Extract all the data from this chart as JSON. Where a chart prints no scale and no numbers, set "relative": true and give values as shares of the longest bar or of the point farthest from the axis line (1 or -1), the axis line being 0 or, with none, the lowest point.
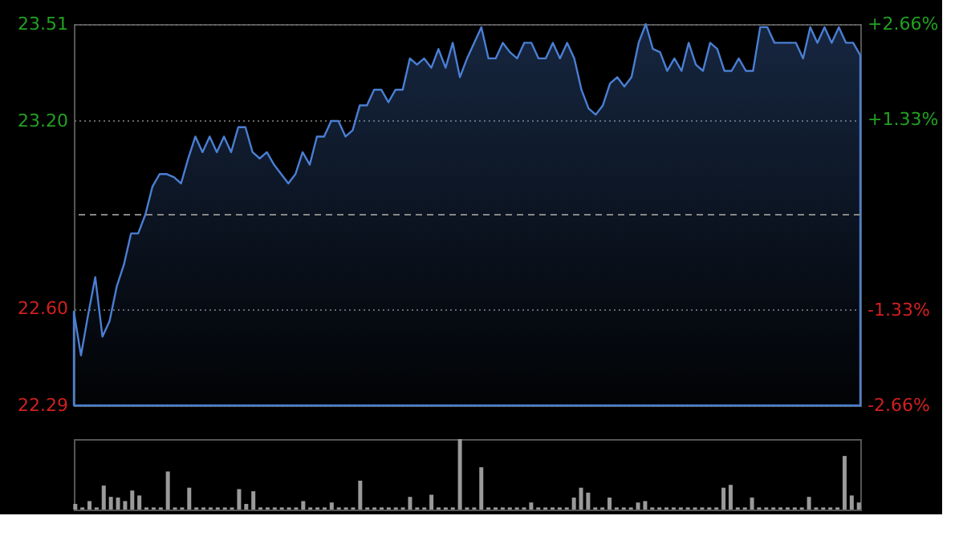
{
  "chart_data": [
    {
      "type": "area",
      "categories": [
        null,
        null,
        null,
        null,
        null,
        null,
        null,
        null,
        null,
        null,
        null,
        null,
        null,
        null,
        null,
        null,
        null,
        null,
        null,
        null,
        null,
        null,
        null,
        null,
        null,
        null,
        null,
        null,
        null,
        null,
        null,
        null,
        null,
        null,
        null,
        null,
        null,
        null,
        null,
        null,
        null,
        null,
        null,
        null,
        null,
        null,
        null,
        null,
        null,
        null,
        null,
        null,
        null,
        null,
        null,
        null,
        null,
        null,
        null,
        null,
        null,
        null,
        null,
        null,
        null,
        null,
        null,
        null,
        null,
        null,
        null,
        null,
        null,
        null,
        null,
        null,
        null,
        null,
        null,
        null,
        null,
        null,
        null,
        null,
        null,
        null,
        null,
        null,
        null,
        null,
        null,
        null,
        null,
        null,
        null,
        null,
        null,
        null,
        null,
        null,
        null,
        null,
        null,
        null,
        null,
        null,
        null,
        null,
        null,
        null,
        null
      ],
      "series": [
        {
          "color": "#4a7fd4",
          "values": [
            22.59,
            22.45,
            22.58,
            22.7,
            22.51,
            22.56,
            22.67,
            22.74,
            22.84,
            22.84,
            22.9,
            22.99,
            23.03,
            23.03,
            23.02,
            23.0,
            23.08,
            23.15,
            23.1,
            23.15,
            23.1,
            23.15,
            23.1,
            23.18,
            23.18,
            23.1,
            23.08,
            23.1,
            23.06,
            23.03,
            23.0,
            23.03,
            23.1,
            23.06,
            23.15,
            23.15,
            23.2,
            23.2,
            23.15,
            23.17,
            23.25,
            23.25,
            23.3,
            23.3,
            23.26,
            23.3,
            23.3,
            23.4,
            23.38,
            23.4,
            23.37,
            23.43,
            23.37,
            23.45,
            23.34,
            23.4,
            23.45,
            23.5,
            23.4,
            23.4,
            23.45,
            23.42,
            23.4,
            23.45,
            23.45,
            23.4,
            23.4,
            23.45,
            23.4,
            23.45,
            23.4,
            23.3,
            23.24,
            23.22,
            23.25,
            23.32,
            23.34,
            23.31,
            23.34,
            23.45,
            23.51,
            23.43,
            23.42,
            23.36,
            23.4,
            23.36,
            23.45,
            23.38,
            23.36,
            23.45,
            23.43,
            23.36,
            23.36,
            23.4,
            23.36,
            23.36,
            23.5,
            23.5,
            23.45,
            23.45,
            23.45,
            23.45,
            23.4,
            23.5,
            23.45,
            23.5,
            23.45,
            23.5,
            23.45,
            23.45,
            23.41
          ]
        }
      ],
      "ylim": [
        22.29,
        23.51
      ],
      "yticks": [
        22.29,
        {
          "value": 22.6,
          "label": "22.60"
        },
        {
          "value": 23.2,
          "label": "23.20"
        },
        23.51
      ],
      "y2lim": [
        -2.66,
        2.66
      ],
      "y2ticks": [
        {
          "value": -2.66,
          "label": "-2.66%"
        },
        {
          "value": -1.33,
          "label": "-1.33%"
        },
        {
          "value": 1.33,
          "label": "+1.33%"
        },
        {
          "value": 2.66,
          "label": "+2.66%"
        }
      ],
      "ref_lines": [
        {
          "axis": "y2",
          "value": 0,
          "color": "#888888",
          "line_style": "dashed"
        }
      ],
      "grid": "y",
      "tick_labels": "y"
    },
    {
      "type": "bar",
      "relative": true,
      "color": "#9a9a9a",
      "tick_labels": false,
      "categories": [
        null,
        null,
        null,
        null,
        null,
        null,
        null,
        null,
        null,
        null,
        null,
        null,
        null,
        null,
        null,
        null,
        null,
        null,
        null,
        null,
        null,
        null,
        null,
        null,
        null,
        null,
        null,
        null,
        null,
        null,
        null,
        null,
        null,
        null,
        null,
        null,
        null,
        null,
        null,
        null,
        null,
        null,
        null,
        null,
        null,
        null,
        null,
        null,
        null,
        null,
        null,
        null,
        null,
        null,
        null,
        null,
        null,
        null,
        null,
        null,
        null,
        null,
        null,
        null,
        null,
        null,
        null,
        null,
        null,
        null,
        null,
        null,
        null,
        null,
        null,
        null,
        null,
        null,
        null,
        null,
        null,
        null,
        null,
        null,
        null,
        null,
        null,
        null,
        null,
        null,
        null,
        null,
        null,
        null,
        null,
        null,
        null,
        null,
        null,
        null,
        null,
        null,
        null,
        null,
        null,
        null,
        null,
        null,
        null,
        null,
        null
      ],
      "values": [
        0.08,
        0.03,
        0.12,
        0.03,
        0.34,
        0.18,
        0.17,
        0.12,
        0.27,
        0.2,
        0.03,
        0.03,
        0.03,
        0.54,
        0.03,
        0.03,
        0.31,
        0.03,
        0.03,
        0.03,
        0.03,
        0.03,
        0.03,
        0.29,
        0.08,
        0.26,
        0.03,
        0.03,
        0.03,
        0.03,
        0.03,
        0.03,
        0.12,
        0.03,
        0.03,
        0.03,
        0.1,
        0.03,
        0.03,
        0.03,
        0.41,
        0.03,
        0.03,
        0.03,
        0.03,
        0.03,
        0.03,
        0.18,
        0.03,
        0.03,
        0.21,
        0.03,
        0.03,
        0.03,
        1.0,
        0.03,
        0.03,
        0.6,
        0.03,
        0.03,
        0.03,
        0.03,
        0.03,
        0.03,
        0.1,
        0.03,
        0.03,
        0.03,
        0.03,
        0.03,
        0.17,
        0.31,
        0.24,
        0.03,
        0.03,
        0.17,
        0.03,
        0.03,
        0.03,
        0.1,
        0.12,
        0.03,
        0.03,
        0.03,
        0.03,
        0.03,
        0.03,
        0.03,
        0.03,
        0.03,
        0.03,
        0.31,
        0.35,
        0.03,
        0.03,
        0.17,
        0.03,
        0.03,
        0.03,
        0.03,
        0.03,
        0.03,
        0.03,
        0.18,
        0.03,
        0.03,
        0.03,
        0.03,
        0.76,
        0.2,
        0.1
      ]
    }
  ]
}
